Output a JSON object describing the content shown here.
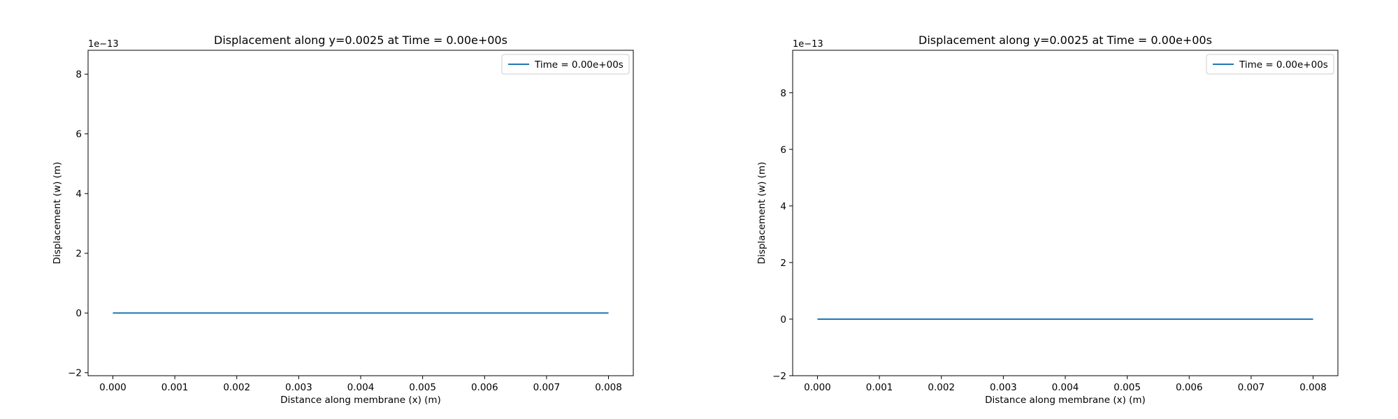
{
  "chart_data": [
    {
      "type": "line",
      "title": "Displacement along y=0.0025 at Time = 0.00e+00s",
      "xlabel": "Distance along membrane (x) (m)",
      "ylabel": "Displacement (w) (m)",
      "offset_text": "1e−13",
      "x": [
        0.0,
        0.008
      ],
      "xlim": [
        -0.0004,
        0.0084
      ],
      "ylim": [
        -2.1,
        8.8
      ],
      "xticks": [
        0.0,
        0.001,
        0.002,
        0.003,
        0.004,
        0.005,
        0.006,
        0.007,
        0.008
      ],
      "xtick_labels": [
        "0.000",
        "0.001",
        "0.002",
        "0.003",
        "0.004",
        "0.005",
        "0.006",
        "0.007",
        "0.008"
      ],
      "yticks": [
        -2,
        0,
        2,
        4,
        6,
        8
      ],
      "ytick_labels": [
        "−2",
        "0",
        "2",
        "4",
        "6",
        "8"
      ],
      "series": [
        {
          "name": "Time = 0.00e+00s",
          "color": "#1f77b4",
          "x": [
            0.0,
            0.008
          ],
          "values": [
            0,
            0
          ]
        }
      ],
      "legend": {
        "position": "top-right",
        "entries": [
          "Time = 0.00e+00s"
        ]
      },
      "grid": false
    },
    {
      "type": "line",
      "title": "Displacement along y=0.0025 at Time = 0.00e+00s",
      "xlabel": "Distance along membrane (x) (m)",
      "ylabel": "Displacement (w) (m)",
      "offset_text": "1e−13",
      "x": [
        0.0,
        0.008
      ],
      "xlim": [
        -0.0004,
        0.0084
      ],
      "ylim": [
        -2.0,
        9.5
      ],
      "xticks": [
        0.0,
        0.001,
        0.002,
        0.003,
        0.004,
        0.005,
        0.006,
        0.007,
        0.008
      ],
      "xtick_labels": [
        "0.000",
        "0.001",
        "0.002",
        "0.003",
        "0.004",
        "0.005",
        "0.006",
        "0.007",
        "0.008"
      ],
      "yticks": [
        -2,
        0,
        2,
        4,
        6,
        8
      ],
      "ytick_labels": [
        "−2",
        "0",
        "2",
        "4",
        "6",
        "8"
      ],
      "series": [
        {
          "name": "Time = 0.00e+00s",
          "color": "#1f77b4",
          "x": [
            0.0,
            0.008
          ],
          "values": [
            0,
            0
          ]
        }
      ],
      "legend": {
        "position": "top-right",
        "entries": [
          "Time = 0.00e+00s"
        ]
      },
      "grid": false
    }
  ]
}
